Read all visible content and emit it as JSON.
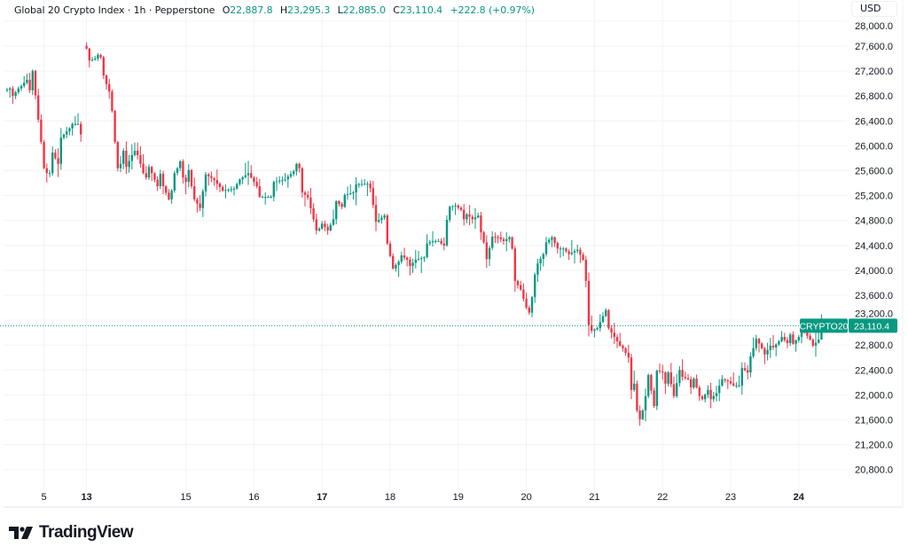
{
  "header": {
    "symbol_name": "Global 20 Crypto Index",
    "separator": "·",
    "interval": "1h",
    "source": "Pepperstone",
    "o_label": "O",
    "o_value": "22,887.8",
    "h_label": "H",
    "h_value": "23,295.3",
    "l_label": "L",
    "l_value": "22,885.0",
    "c_label": "C",
    "c_value": "23,110.4",
    "change": "+222.8 (+0.97%)"
  },
  "currency_button": "USD",
  "price_label": {
    "ticker": "CRYPTO20",
    "value": "23,110.4"
  },
  "brand": {
    "name": "TradingView",
    "icon": "tradingview-logo-icon"
  },
  "colors": {
    "up": "#089981",
    "down": "#f23645",
    "grid": "#f2f3f5",
    "text": "#131722"
  },
  "chart_data": {
    "type": "candlestick",
    "title": "Global 20 Crypto Index · 1h · Pepperstone",
    "ylim": [
      20600,
      28000
    ],
    "y_ticks": [
      20800,
      21200,
      21600,
      22000,
      22400,
      22800,
      23200,
      23600,
      24000,
      24400,
      24800,
      25200,
      25600,
      26000,
      26400,
      26800,
      27200,
      27600,
      28000
    ],
    "y_tick_labels": [
      "20,800.0",
      "21,200.0",
      "21,600.0",
      "22,000.0",
      "22,400.0",
      "22,800.0",
      "23,200.0",
      "23,600.0",
      "24,000.0",
      "24,400.0",
      "24,800.0",
      "25,200.0",
      "25,600.0",
      "26,000.0",
      "26,400.0",
      "26,800.0",
      "27,200.0",
      "27,600.0",
      "28,000.0"
    ],
    "x_ticks": [
      {
        "label": "5",
        "bar": 13,
        "bold": false
      },
      {
        "label": "13",
        "bar": 28,
        "bold": true
      },
      {
        "label": "15",
        "bar": 63,
        "bold": false
      },
      {
        "label": "16",
        "bar": 87,
        "bold": false
      },
      {
        "label": "17",
        "bar": 111,
        "bold": true
      },
      {
        "label": "18",
        "bar": 135,
        "bold": false
      },
      {
        "label": "19",
        "bar": 159,
        "bold": false
      },
      {
        "label": "20",
        "bar": 183,
        "bold": false
      },
      {
        "label": "21",
        "bar": 207,
        "bold": false
      },
      {
        "label": "22",
        "bar": 231,
        "bold": false
      },
      {
        "label": "23",
        "bar": 255,
        "bold": false
      },
      {
        "label": "24",
        "bar": 279,
        "bold": true
      }
    ],
    "last": {
      "open": 22887.8,
      "high": 23295.3,
      "low": 22885.0,
      "close": 23110.4
    },
    "grid": true,
    "closes_by_bar": [
      [
        0,
        26900
      ],
      [
        1,
        26920
      ],
      [
        2,
        26800
      ],
      [
        4,
        26920
      ],
      [
        5,
        26960
      ],
      [
        7,
        27060
      ],
      [
        8,
        26890
      ],
      [
        9,
        27200
      ],
      [
        11,
        26420
      ],
      [
        12,
        26060
      ],
      [
        13,
        25640
      ],
      [
        14,
        25560
      ],
      [
        15,
        25560
      ],
      [
        16,
        25890
      ],
      [
        18,
        25710
      ],
      [
        19,
        26130
      ],
      [
        22,
        26280
      ],
      [
        23,
        26350
      ],
      [
        25,
        26350
      ],
      [
        26,
        26180
      ],
      [
        28,
        27560
      ],
      [
        29,
        27370
      ],
      [
        31,
        27400
      ],
      [
        32,
        27460
      ],
      [
        33,
        27420
      ],
      [
        34,
        27130
      ],
      [
        35,
        26990
      ],
      [
        36,
        26870
      ],
      [
        37,
        26560
      ],
      [
        38,
        26060
      ],
      [
        39,
        25640
      ],
      [
        40,
        25710
      ],
      [
        41,
        25920
      ],
      [
        42,
        25660
      ],
      [
        44,
        25850
      ],
      [
        45,
        25920
      ],
      [
        46,
        25850
      ],
      [
        47,
        25710
      ],
      [
        48,
        25560
      ],
      [
        49,
        25490
      ],
      [
        50,
        25660
      ],
      [
        51,
        25560
      ],
      [
        53,
        25350
      ],
      [
        54,
        25550
      ],
      [
        55,
        25350
      ],
      [
        57,
        25140
      ],
      [
        58,
        25280
      ],
      [
        59,
        25560
      ],
      [
        60,
        25640
      ],
      [
        61,
        25750
      ],
      [
        62,
        25490
      ],
      [
        63,
        25420
      ],
      [
        64,
        25610
      ],
      [
        65,
        25350
      ],
      [
        66,
        25140
      ],
      [
        68,
        25000
      ],
      [
        70,
        25540
      ],
      [
        73,
        25450
      ],
      [
        76,
        25280
      ],
      [
        80,
        25310
      ],
      [
        82,
        25460
      ],
      [
        85,
        25560
      ],
      [
        88,
        25350
      ],
      [
        89,
        25180
      ],
      [
        93,
        25180
      ],
      [
        94,
        25420
      ],
      [
        98,
        25460
      ],
      [
        101,
        25590
      ],
      [
        102,
        25710
      ],
      [
        103,
        25640
      ],
      [
        104,
        25250
      ],
      [
        106,
        25170
      ],
      [
        108,
        24820
      ],
      [
        109,
        24640
      ],
      [
        110,
        24670
      ],
      [
        111,
        24750
      ],
      [
        113,
        24640
      ],
      [
        115,
        24820
      ],
      [
        116,
        25110
      ],
      [
        118,
        25020
      ],
      [
        119,
        25210
      ],
      [
        122,
        25250
      ],
      [
        123,
        25380
      ],
      [
        127,
        25390
      ],
      [
        128,
        25320
      ],
      [
        130,
        24780
      ],
      [
        131,
        24810
      ],
      [
        133,
        24880
      ],
      [
        134,
        24430
      ],
      [
        136,
        24030
      ],
      [
        138,
        24140
      ],
      [
        139,
        24240
      ],
      [
        141,
        24170
      ],
      [
        142,
        24070
      ],
      [
        144,
        24170
      ],
      [
        147,
        24210
      ],
      [
        148,
        24430
      ],
      [
        150,
        24470
      ],
      [
        152,
        24470
      ],
      [
        153,
        24430
      ],
      [
        154,
        24400
      ],
      [
        155,
        24810
      ],
      [
        156,
        25020
      ],
      [
        158,
        25040
      ],
      [
        160,
        24970
      ],
      [
        161,
        24820
      ],
      [
        162,
        24900
      ],
      [
        164,
        24820
      ],
      [
        166,
        24880
      ],
      [
        167,
        24610
      ],
      [
        168,
        24450
      ],
      [
        169,
        24180
      ],
      [
        171,
        24540
      ],
      [
        173,
        24530
      ],
      [
        175,
        24470
      ],
      [
        177,
        24530
      ],
      [
        178,
        24350
      ],
      [
        179,
        23830
      ],
      [
        181,
        23690
      ],
      [
        183,
        23400
      ],
      [
        184,
        23320
      ],
      [
        185,
        23570
      ],
      [
        186,
        23930
      ],
      [
        187,
        24110
      ],
      [
        189,
        24260
      ],
      [
        190,
        24450
      ],
      [
        192,
        24530
      ],
      [
        194,
        24350
      ],
      [
        196,
        24350
      ],
      [
        198,
        24260
      ],
      [
        200,
        24310
      ],
      [
        201,
        24330
      ],
      [
        203,
        24170
      ],
      [
        204,
        23830
      ],
      [
        205,
        23120
      ],
      [
        206,
        23030
      ],
      [
        208,
        23070
      ],
      [
        209,
        23170
      ],
      [
        211,
        23360
      ],
      [
        212,
        23070
      ],
      [
        214,
        22930
      ],
      [
        216,
        22790
      ],
      [
        217,
        22750
      ],
      [
        219,
        22600
      ],
      [
        220,
        22080
      ],
      [
        221,
        22180
      ],
      [
        222,
        21750
      ],
      [
        223,
        21610
      ],
      [
        224,
        21750
      ],
      [
        225,
        21980
      ],
      [
        226,
        22320
      ],
      [
        228,
        21820
      ],
      [
        229,
        22390
      ],
      [
        231,
        22360
      ],
      [
        232,
        22180
      ],
      [
        233,
        22360
      ],
      [
        235,
        21980
      ],
      [
        237,
        22400
      ],
      [
        238,
        22290
      ],
      [
        240,
        22250
      ],
      [
        241,
        22120
      ],
      [
        242,
        22260
      ],
      [
        244,
        21980
      ],
      [
        245,
        21930
      ],
      [
        247,
        22080
      ],
      [
        248,
        21930
      ],
      [
        250,
        22030
      ],
      [
        251,
        22150
      ],
      [
        252,
        22250
      ],
      [
        254,
        22220
      ],
      [
        256,
        22150
      ],
      [
        258,
        22150
      ],
      [
        259,
        22430
      ],
      [
        261,
        22360
      ],
      [
        262,
        22620
      ],
      [
        263,
        22750
      ],
      [
        264,
        22900
      ],
      [
        266,
        22750
      ],
      [
        267,
        22650
      ],
      [
        269,
        22790
      ],
      [
        270,
        22760
      ],
      [
        272,
        22860
      ],
      [
        273,
        22930
      ],
      [
        275,
        22830
      ],
      [
        276,
        22970
      ],
      [
        277,
        22820
      ],
      [
        279,
        22930
      ],
      [
        280,
        23070
      ],
      [
        283,
        22890
      ],
      [
        284,
        22790
      ],
      [
        286,
        22887.8
      ],
      [
        287,
        23110.4
      ]
    ]
  }
}
